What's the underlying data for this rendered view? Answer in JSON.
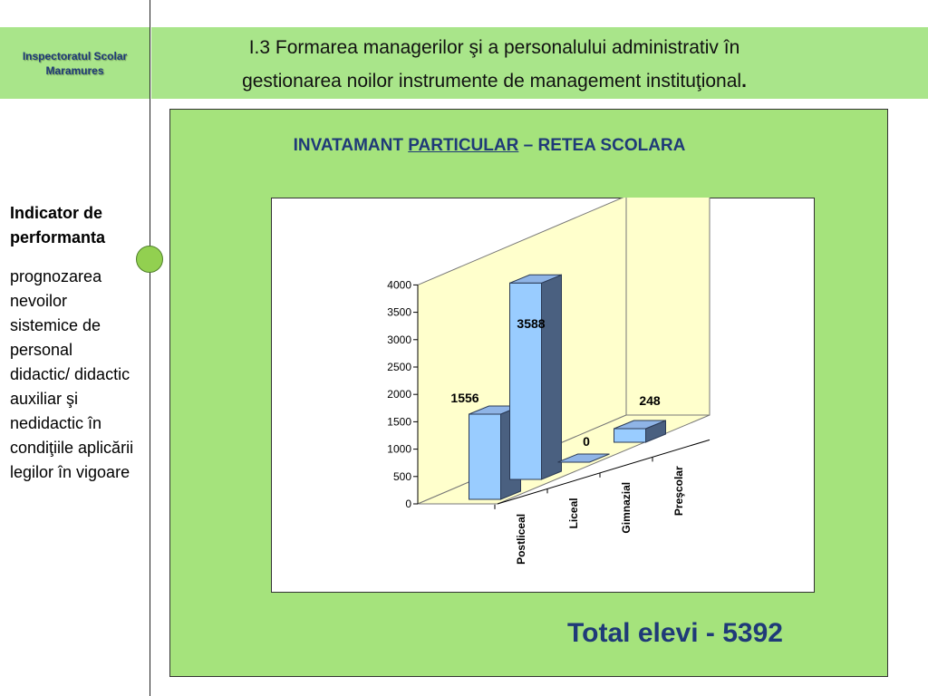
{
  "header": {
    "org_name": "Inspectoratul Scolar\nMaramures",
    "title_line1": "I.3 Formarea managerilor şi a personalului administrativ în",
    "title_line2": "gestionarea noilor instrumente de management instituţional",
    "title_end": "."
  },
  "sidebar": {
    "heading": "Indicator de performanta",
    "text": "prognozarea nevoilor sistemice de personal didactic/ didactic auxiliar şi nedidactic în condiţiile aplicării legilor în vigoare"
  },
  "chart_title": {
    "part1": "INVATAMANT ",
    "part2": "PARTICULAR",
    "part3": " – RETEA SCOLARA"
  },
  "total": "Total elevi - 5392",
  "colors": {
    "header_bg": "#a9e58a",
    "panel_bg": "#a5e37c",
    "title_blue": "#1f3a78",
    "bar_front": "#99ccff",
    "bar_side": "#4a6080",
    "wall": "#ffffcc"
  },
  "chart_data": {
    "type": "bar",
    "style": "3d-column",
    "title": "INVATAMANT PARTICULAR – RETEA SCOLARA",
    "categories": [
      "Postliceal",
      "Liceal",
      "Gimnazial",
      "Preşcolar"
    ],
    "values": [
      1556,
      3588,
      0,
      248
    ],
    "data_labels": [
      "1556",
      "3588",
      "0",
      "248"
    ],
    "ylim": [
      0,
      4000
    ],
    "yticks": [
      "0",
      "500",
      "1000",
      "1500",
      "2000",
      "2500",
      "3000",
      "3500",
      "4000"
    ],
    "grid": false,
    "legend": "none"
  }
}
